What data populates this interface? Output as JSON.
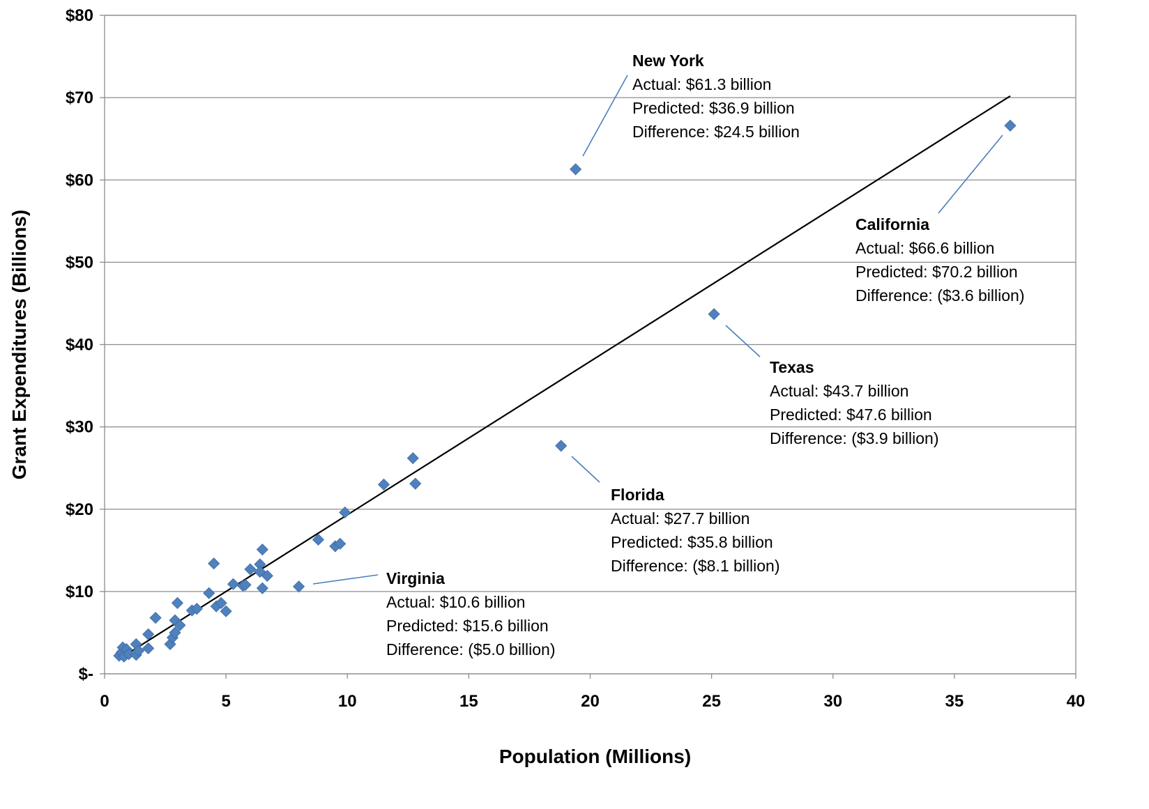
{
  "chart_data": {
    "type": "scatter",
    "title": "",
    "xlabel": "Population  (Millions)",
    "ylabel": "Grant Expenditures  (Billions)",
    "xlim": [
      0,
      40
    ],
    "ylim": [
      0,
      80
    ],
    "x_ticks": [
      "0",
      "5",
      "10",
      "15",
      "20",
      "25",
      "30",
      "35",
      "40"
    ],
    "y_ticks": [
      "$-",
      "$10",
      "$20",
      "$30",
      "$40",
      "$50",
      "$60",
      "$70",
      "$80"
    ],
    "grid": "horizontal",
    "marker_color": "#4f81bd",
    "trendline": {
      "x": [
        0.6,
        37.3
      ],
      "y": [
        1.8,
        70.2
      ]
    },
    "series": [
      {
        "points": [
          [
            0.6,
            2.2
          ],
          [
            0.7,
            2.6
          ],
          [
            0.75,
            3.2
          ],
          [
            0.8,
            2.1
          ],
          [
            0.9,
            3.0
          ],
          [
            1.0,
            2.4
          ],
          [
            1.3,
            2.3
          ],
          [
            1.3,
            3.6
          ],
          [
            1.4,
            2.8
          ],
          [
            1.8,
            3.1
          ],
          [
            1.8,
            4.8
          ],
          [
            2.1,
            6.8
          ],
          [
            2.7,
            3.6
          ],
          [
            2.8,
            4.4
          ],
          [
            2.9,
            5.0
          ],
          [
            2.9,
            6.5
          ],
          [
            3.0,
            8.6
          ],
          [
            3.1,
            5.9
          ],
          [
            3.6,
            7.7
          ],
          [
            3.8,
            7.9
          ],
          [
            4.3,
            9.8
          ],
          [
            4.5,
            13.4
          ],
          [
            4.6,
            8.2
          ],
          [
            4.8,
            8.6
          ],
          [
            5.0,
            7.6
          ],
          [
            5.3,
            10.9
          ],
          [
            5.7,
            10.7
          ],
          [
            5.8,
            10.8
          ],
          [
            6.0,
            12.7
          ],
          [
            6.4,
            13.3
          ],
          [
            6.4,
            12.4
          ],
          [
            6.5,
            10.4
          ],
          [
            6.5,
            15.1
          ],
          [
            6.7,
            11.9
          ],
          [
            8.0,
            10.6
          ],
          [
            8.8,
            16.3
          ],
          [
            9.5,
            15.5
          ],
          [
            9.7,
            15.8
          ],
          [
            9.9,
            19.6
          ],
          [
            11.5,
            23.0
          ],
          [
            12.7,
            26.2
          ],
          [
            12.8,
            23.1
          ],
          [
            18.8,
            27.7
          ],
          [
            19.4,
            61.3
          ],
          [
            25.1,
            43.7
          ],
          [
            37.3,
            66.6
          ]
        ]
      }
    ],
    "annotations": [
      {
        "name": "New York",
        "title": "New York",
        "lines": [
          "Actual: $61.3 billion",
          "Predicted: $36.9 billion",
          "Difference: $24.5 billion"
        ],
        "point": [
          19.4,
          61.3
        ]
      },
      {
        "name": "California",
        "title": "California",
        "lines": [
          "Actual:  $66.6 billion",
          "Predicted: $70.2 billion",
          "Difference:  ($3.6 billion)"
        ],
        "point": [
          37.3,
          66.6
        ]
      },
      {
        "name": "Texas",
        "title": "Texas",
        "lines": [
          "Actual: $43.7 billion",
          "Predicted: $47.6 billion",
          "Difference: ($3.9 billion)"
        ],
        "point": [
          25.1,
          43.7
        ]
      },
      {
        "name": "Florida",
        "title": "Florida",
        "lines": [
          "Actual:  $27.7 billion",
          "Predicted: $35.8 billion",
          "Difference: ($8.1 billion)"
        ],
        "point": [
          18.8,
          27.7
        ]
      },
      {
        "name": "Virginia",
        "title": "Virginia",
        "lines": [
          "Actual: $10.6 billion",
          "Predicted: $15.6 billion",
          "Difference: ($5.0 billion)"
        ],
        "point": [
          8.0,
          10.6
        ]
      }
    ]
  }
}
